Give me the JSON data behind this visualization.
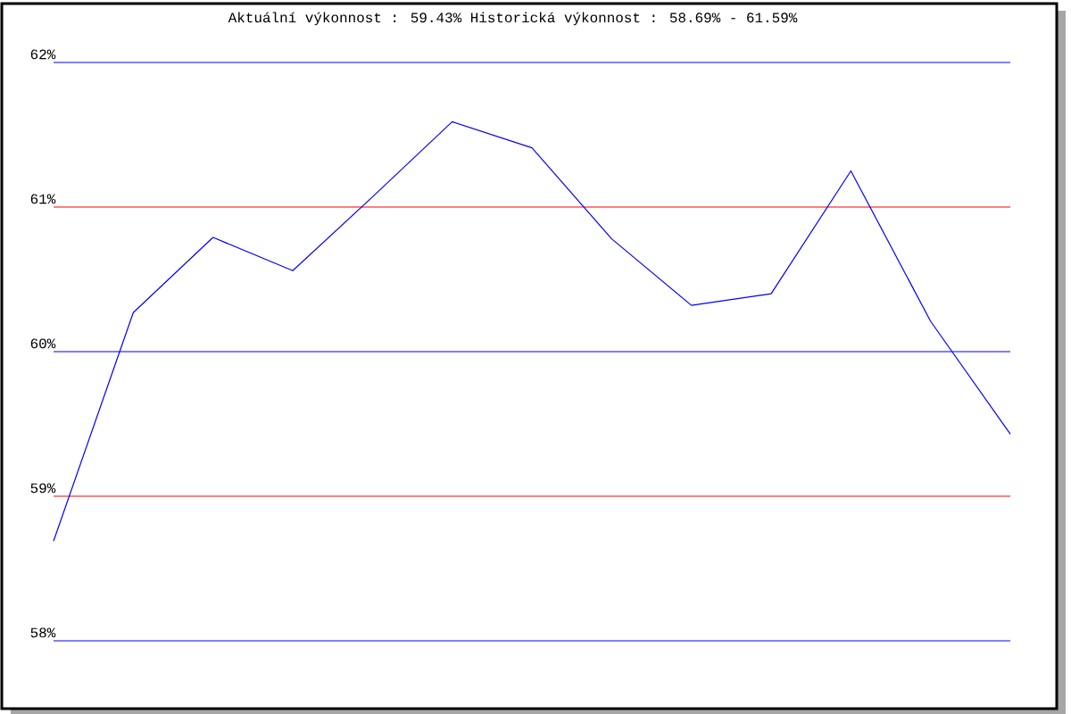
{
  "chart_data": {
    "type": "line",
    "title": "Aktuální výkonnost : 59.43%  Historická výkonnost : 58.69% - 61.59%",
    "categories": [
      null,
      null,
      null,
      null,
      null,
      null,
      null,
      null,
      null,
      null,
      null,
      null,
      null
    ],
    "series": [
      {
        "color": "#0000ff",
        "values": [
          58.69,
          60.27,
          60.79,
          60.56,
          61.07,
          61.59,
          61.41,
          60.78,
          60.32,
          60.4,
          61.25,
          60.21,
          59.43
        ]
      }
    ],
    "ylim": [
      58,
      62
    ],
    "yticks": [
      {
        "value": 58,
        "label": "58%"
      },
      {
        "value": 59,
        "label": "59%"
      },
      {
        "value": 60,
        "label": "60%"
      },
      {
        "value": 61,
        "label": "61%"
      },
      {
        "value": 62,
        "label": "62%"
      }
    ],
    "ref_lines": [
      {
        "axis": "y",
        "value": 62,
        "color": "#0000ff"
      },
      {
        "axis": "y",
        "value": 61,
        "color": "#ff0000"
      },
      {
        "axis": "y",
        "value": 60,
        "color": "#0000ff"
      },
      {
        "axis": "y",
        "value": 59,
        "color": "#ff0000"
      },
      {
        "axis": "y",
        "value": 58,
        "color": "#0000ff"
      }
    ]
  }
}
